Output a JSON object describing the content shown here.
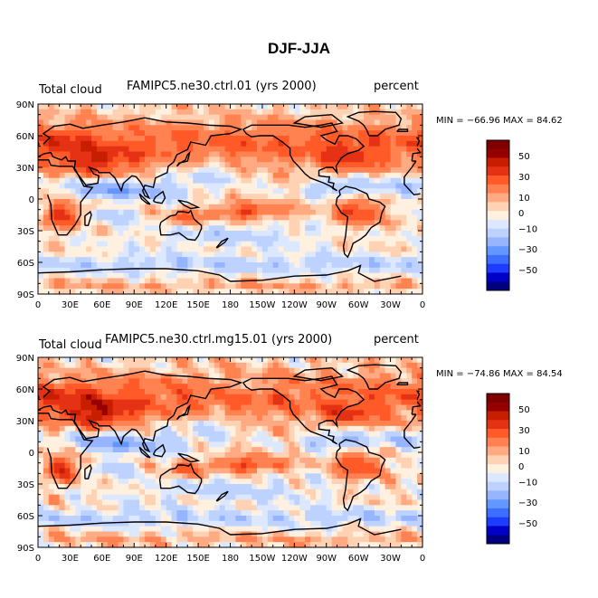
{
  "title": "DJF-JJA",
  "colors": [
    "#000080",
    "#0000c8",
    "#1e3cff",
    "#3c6eff",
    "#6496ff",
    "#96b4ff",
    "#bed2ff",
    "#dce8ff",
    "#fff0e0",
    "#ffd2b4",
    "#ffaa82",
    "#ff8250",
    "#ff5a28",
    "#e63214",
    "#c81e00",
    "#960000",
    "#800000"
  ],
  "colorbar": {
    "labels": [
      "50",
      "30",
      "10",
      "0",
      "−10",
      "−30",
      "−50"
    ]
  },
  "panels": [
    {
      "left_label": "Total cloud",
      "center_label": "FAMIPC5.ne30.ctrl.01 (yrs 2000)",
      "right_label": "percent",
      "min_label": "MIN =",
      "min_value": "−66.96",
      "max_label": "MAX =",
      "max_value": "84.62"
    },
    {
      "left_label": "Total cloud",
      "center_label": "FAMIPC5.ne30.ctrl.mg15.01 (yrs 2000)",
      "right_label": "percent",
      "min_label": "MIN =",
      "min_value": "−74.86",
      "max_label": "MAX =",
      "max_value": "84.54"
    }
  ],
  "chart_data": [
    {
      "type": "heatmap",
      "title": "DJF-JJA",
      "subtitle": "FAMIPC5.ne30.ctrl.01 (yrs 2000)",
      "variable": "Total cloud",
      "units": "percent",
      "xlabel": "",
      "ylabel": "",
      "x_ticks": [
        "0",
        "30E",
        "60E",
        "90E",
        "120E",
        "150E",
        "180",
        "150W",
        "120W",
        "90W",
        "60W",
        "30W",
        "0"
      ],
      "y_ticks": [
        "90N",
        "60N",
        "30N",
        "0",
        "30S",
        "60S",
        "90S"
      ],
      "xlim": [
        0,
        360
      ],
      "ylim": [
        -90,
        90
      ],
      "colorbar_levels": [
        -50,
        -40,
        -30,
        -20,
        -10,
        -5,
        0,
        5,
        10,
        20,
        30,
        40,
        50
      ],
      "min": -66.96,
      "max": 84.62
    },
    {
      "type": "heatmap",
      "title": "DJF-JJA",
      "subtitle": "FAMIPC5.ne30.ctrl.mg15.01 (yrs 2000)",
      "variable": "Total cloud",
      "units": "percent",
      "xlabel": "",
      "ylabel": "",
      "x_ticks": [
        "0",
        "30E",
        "60E",
        "90E",
        "120E",
        "150E",
        "180",
        "150W",
        "120W",
        "90W",
        "60W",
        "30W",
        "0"
      ],
      "y_ticks": [
        "90N",
        "60N",
        "30N",
        "0",
        "30S",
        "60S",
        "90S"
      ],
      "xlim": [
        0,
        360
      ],
      "ylim": [
        -90,
        90
      ],
      "colorbar_levels": [
        -50,
        -40,
        -30,
        -20,
        -10,
        -5,
        0,
        5,
        10,
        20,
        30,
        40,
        50
      ],
      "min": -74.86,
      "max": 84.54
    }
  ]
}
